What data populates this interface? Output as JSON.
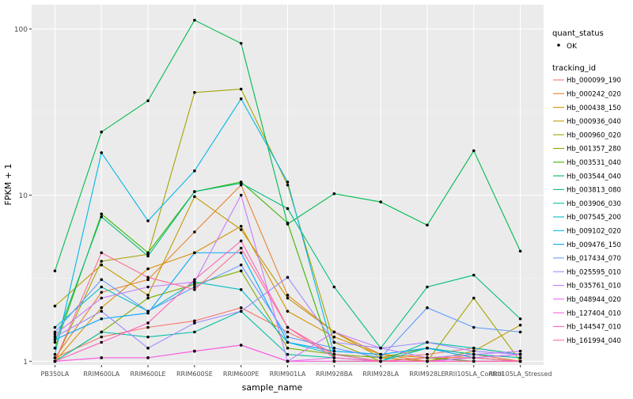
{
  "chart_data": {
    "type": "line",
    "title": "",
    "xlabel": "sample_name",
    "ylabel": "FPKM + 1",
    "y_scale": "log10",
    "ylim": [
      0.95,
      140
    ],
    "y_ticks": [
      {
        "value": 1,
        "label": "1"
      },
      {
        "value": 10,
        "label": "10"
      },
      {
        "value": 100,
        "label": "100"
      }
    ],
    "categories": [
      "PB350LA",
      "RRIM600LA",
      "RRIM600LE",
      "RRIM600SE",
      "RRIM600PE",
      "RRIM901LA",
      "RRIM928BA",
      "RRIM928LA",
      "RRIM928LE",
      "RRII105LA_Control",
      "RRII105LA_Stressed"
    ],
    "series": [
      {
        "name": "Hb_000099_190",
        "color": "#F8766D",
        "values": [
          1.05,
          1.4,
          1.6,
          1.75,
          2.1,
          1.5,
          1.1,
          1.05,
          1.1,
          1.2,
          1.1
        ]
      },
      {
        "name": "Hb_000242_020",
        "color": "#EA8331",
        "values": [
          1.05,
          2.6,
          3.1,
          6.0,
          11.5,
          2.5,
          1.5,
          1.1,
          1.0,
          1.1,
          1.0
        ]
      },
      {
        "name": "Hb_000438_150",
        "color": "#D89000",
        "values": [
          1.0,
          2.1,
          3.6,
          4.5,
          6.5,
          2.0,
          1.4,
          1.1,
          1.05,
          1.05,
          1.0
        ]
      },
      {
        "name": "Hb_000936_040",
        "color": "#C09B00",
        "values": [
          2.15,
          3.8,
          2.5,
          9.8,
          6.2,
          2.4,
          1.5,
          1.05,
          1.0,
          1.15,
          1.65
        ]
      },
      {
        "name": "Hb_000960_020",
        "color": "#A3A500",
        "values": [
          1.0,
          4.0,
          4.4,
          41.5,
          43.5,
          11.5,
          1.3,
          1.0,
          1.0,
          2.4,
          1.0
        ]
      },
      {
        "name": "Hb_001357_280",
        "color": "#7CAE00",
        "values": [
          1.0,
          1.5,
          2.4,
          2.9,
          3.5,
          1.2,
          1.1,
          1.05,
          1.2,
          1.1,
          1.05
        ]
      },
      {
        "name": "Hb_003531_040",
        "color": "#39B600",
        "values": [
          1.2,
          7.7,
          4.5,
          10.5,
          12.0,
          6.8,
          1.0,
          1.0,
          1.05,
          1.0,
          1.0
        ]
      },
      {
        "name": "Hb_003544_040",
        "color": "#00BB4E",
        "values": [
          3.5,
          24.0,
          37.0,
          113.0,
          82.0,
          6.7,
          10.2,
          9.1,
          6.6,
          18.5,
          4.6
        ]
      },
      {
        "name": "Hb_003813_080",
        "color": "#00BF7D",
        "values": [
          1.3,
          7.4,
          4.3,
          10.5,
          11.8,
          8.3,
          2.8,
          1.2,
          2.8,
          3.3,
          1.8
        ]
      },
      {
        "name": "Hb_003906_030",
        "color": "#00C1A3",
        "values": [
          1.0,
          1.5,
          1.4,
          1.5,
          2.0,
          1.1,
          1.05,
          1.0,
          1.3,
          1.2,
          1.1
        ]
      },
      {
        "name": "Hb_007545_200",
        "color": "#00BFC4",
        "values": [
          1.6,
          2.8,
          2.0,
          3.0,
          2.7,
          1.3,
          1.1,
          1.0,
          1.2,
          1.1,
          1.05
        ]
      },
      {
        "name": "Hb_009102_020",
        "color": "#00B8E7",
        "values": [
          1.1,
          18.0,
          7.0,
          14.0,
          38.0,
          12.0,
          1.1,
          1.0,
          1.0,
          1.05,
          1.0
        ]
      },
      {
        "name": "Hb_009476_150",
        "color": "#00A9FF",
        "values": [
          1.35,
          1.8,
          1.95,
          4.5,
          4.5,
          1.3,
          1.15,
          1.1,
          1.2,
          1.05,
          1.1
        ]
      },
      {
        "name": "Hb_017434_070",
        "color": "#619CFF",
        "values": [
          1.5,
          3.1,
          2.0,
          2.8,
          3.8,
          1.4,
          1.2,
          1.05,
          2.1,
          1.6,
          1.5
        ]
      },
      {
        "name": "Hb_025595_010",
        "color": "#9F8CFF",
        "values": [
          1.4,
          2.0,
          1.2,
          1.7,
          2.0,
          3.2,
          1.3,
          1.2,
          1.3,
          1.15,
          1.1
        ]
      },
      {
        "name": "Hb_035761_010",
        "color": "#C77CFF",
        "values": [
          1.45,
          2.4,
          2.8,
          3.0,
          10.0,
          1.0,
          1.5,
          1.2,
          1.05,
          1.1,
          1.15
        ]
      },
      {
        "name": "Hb_048944_020",
        "color": "#E76BF3",
        "values": [
          1.0,
          1.05,
          1.05,
          1.15,
          1.25,
          1.0,
          1.05,
          1.0,
          1.0,
          1.05,
          1.1
        ]
      },
      {
        "name": "Hb_127404_010",
        "color": "#FA62DB",
        "values": [
          1.0,
          1.05,
          1.05,
          1.15,
          1.25,
          1.0,
          1.0,
          1.0,
          1.0,
          1.0,
          1.0
        ]
      },
      {
        "name": "Hb_144547_010",
        "color": "#FF62BC",
        "values": [
          1.0,
          1.3,
          1.7,
          3.1,
          5.3,
          1.6,
          1.05,
          1.0,
          1.0,
          1.0,
          1.0
        ]
      },
      {
        "name": "Hb_161994_040",
        "color": "#FF6C91",
        "values": [
          1.0,
          4.5,
          3.2,
          2.7,
          4.8,
          1.6,
          1.1,
          1.0,
          1.05,
          1.05,
          1.0
        ]
      }
    ],
    "legend": {
      "placement": "right",
      "quant_title": "quant_status",
      "quant_label": "OK",
      "series_title": "tracking_id"
    },
    "grid": true
  }
}
